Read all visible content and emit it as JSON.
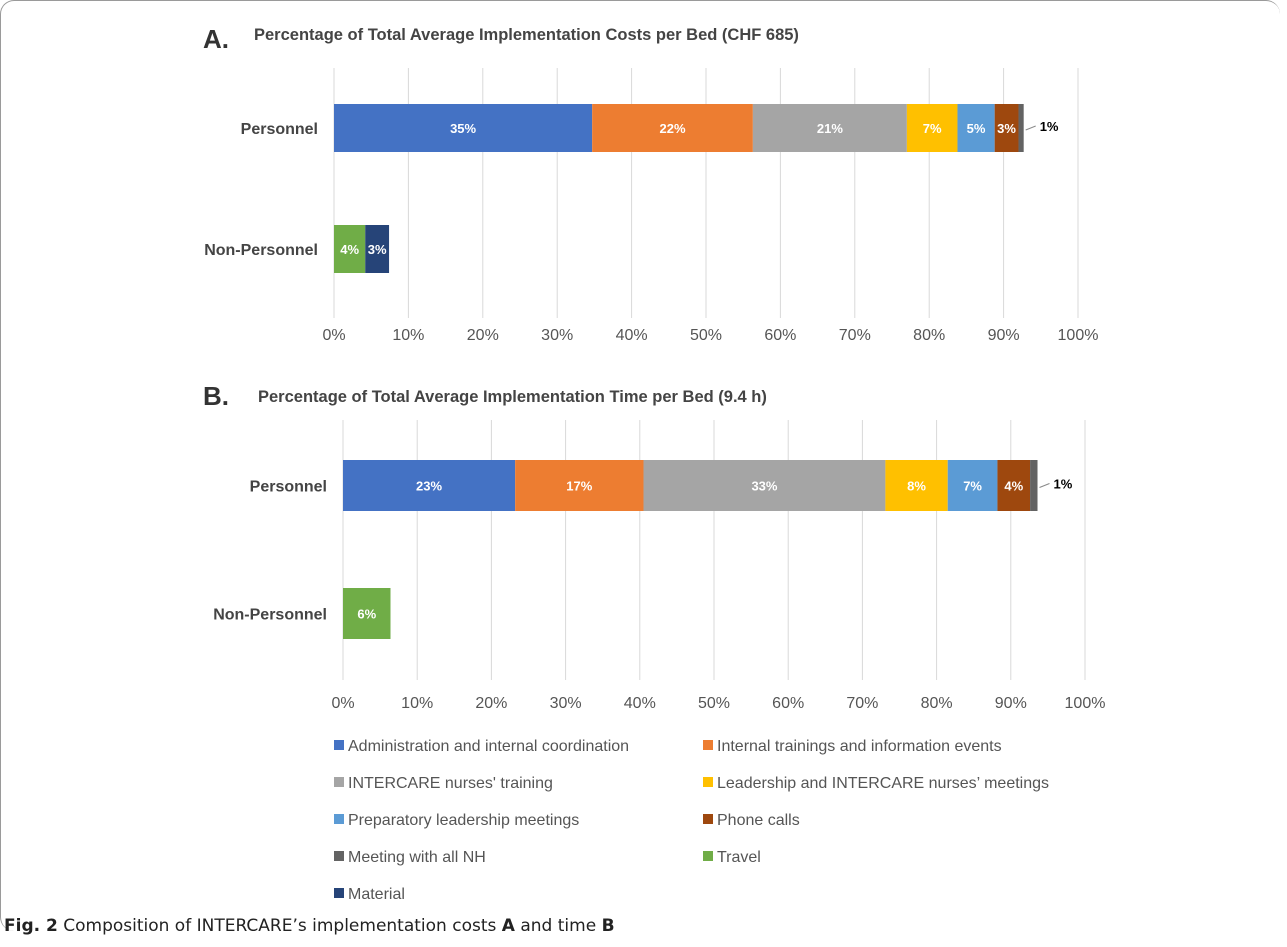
{
  "chart_data": [
    {
      "type": "bar",
      "orientation": "horizontal",
      "stacked": true,
      "panel_letter": "A.",
      "title": "Percentage of Total Average Implementation Costs per Bed (CHF 685)",
      "categories": [
        "Personnel",
        "Non-Personnel"
      ],
      "xlim": [
        0,
        100
      ],
      "x_ticks": [
        "0%",
        "10%",
        "20%",
        "30%",
        "40%",
        "50%",
        "60%",
        "70%",
        "80%",
        "90%",
        "100%"
      ],
      "grid": true,
      "series": [
        {
          "name": "Administration and internal coordination",
          "values": [
            34.7,
            0
          ],
          "labels": [
            "35%",
            ""
          ]
        },
        {
          "name": "Internal trainings and information events",
          "values": [
            21.6,
            0
          ],
          "labels": [
            "22%",
            ""
          ]
        },
        {
          "name": "INTERCARE nurses' training",
          "values": [
            20.7,
            0
          ],
          "labels": [
            "21%",
            ""
          ]
        },
        {
          "name": "Leadership and INTERCARE nurses’ meetings",
          "values": [
            6.8,
            0
          ],
          "labels": [
            "7%",
            ""
          ]
        },
        {
          "name": "Preparatory leadership meetings",
          "values": [
            5.0,
            0
          ],
          "labels": [
            "5%",
            ""
          ]
        },
        {
          "name": "Phone calls",
          "values": [
            3.2,
            0
          ],
          "labels": [
            "3%",
            ""
          ]
        },
        {
          "name": "Meeting with all NH",
          "values": [
            0.7,
            0
          ],
          "labels": [
            "1%",
            ""
          ]
        },
        {
          "name": "Travel",
          "values": [
            0,
            4.2
          ],
          "labels": [
            "",
            "4%"
          ]
        },
        {
          "name": "Material",
          "values": [
            0,
            3.2
          ],
          "labels": [
            "",
            "3%"
          ]
        }
      ]
    },
    {
      "type": "bar",
      "orientation": "horizontal",
      "stacked": true,
      "panel_letter": "B.",
      "title": "Percentage of Total Average Implementation Time per Bed (9.4 h)",
      "categories": [
        "Personnel",
        "Non-Personnel"
      ],
      "xlim": [
        0,
        100
      ],
      "x_ticks": [
        "0%",
        "10%",
        "20%",
        "30%",
        "40%",
        "50%",
        "60%",
        "70%",
        "80%",
        "90%",
        "100%"
      ],
      "grid": true,
      "series": [
        {
          "name": "Administration and internal coordination",
          "values": [
            23.2,
            0
          ],
          "labels": [
            "23%",
            ""
          ]
        },
        {
          "name": "Internal trainings and information events",
          "values": [
            17.3,
            0
          ],
          "labels": [
            "17%",
            ""
          ]
        },
        {
          "name": "INTERCARE nurses' training",
          "values": [
            32.6,
            0
          ],
          "labels": [
            "33%",
            ""
          ]
        },
        {
          "name": "Leadership and INTERCARE nurses’ meetings",
          "values": [
            8.4,
            0
          ],
          "labels": [
            "8%",
            ""
          ]
        },
        {
          "name": "Preparatory leadership meetings",
          "values": [
            6.7,
            0
          ],
          "labels": [
            "7%",
            ""
          ]
        },
        {
          "name": "Phone calls",
          "values": [
            4.4,
            0
          ],
          "labels": [
            "4%",
            ""
          ]
        },
        {
          "name": "Meeting with all NH",
          "values": [
            1.0,
            0
          ],
          "labels": [
            "1%",
            ""
          ]
        },
        {
          "name": "Travel",
          "values": [
            0,
            6.4
          ],
          "labels": [
            "",
            "6%"
          ]
        },
        {
          "name": "Material",
          "values": [
            0,
            0
          ],
          "labels": [
            "",
            ""
          ]
        }
      ]
    }
  ],
  "colors": {
    "Administration and internal coordination": "#4472c4",
    "Internal trainings and information events": "#ed7d31",
    "INTERCARE nurses' training": "#a5a5a5",
    "Leadership and INTERCARE nurses’ meetings": "#ffc000",
    "Preparatory leadership meetings": "#5b9bd5",
    "Phone calls": "#9e480e",
    "Meeting with all NH": "#636363",
    "Travel": "#70ad47",
    "Material": "#264478"
  },
  "legend": [
    "Administration and internal coordination",
    "Internal trainings and information events",
    "INTERCARE nurses' training",
    "Leadership and INTERCARE nurses’ meetings",
    "Preparatory leadership meetings",
    "Phone calls",
    "Meeting with all NH",
    "Travel",
    "Material"
  ],
  "caption": {
    "label": "Fig. 2",
    "text": "Composition of INTERCARE’s implementation costs",
    "a": "A",
    "and": "and time",
    "b": "B"
  }
}
